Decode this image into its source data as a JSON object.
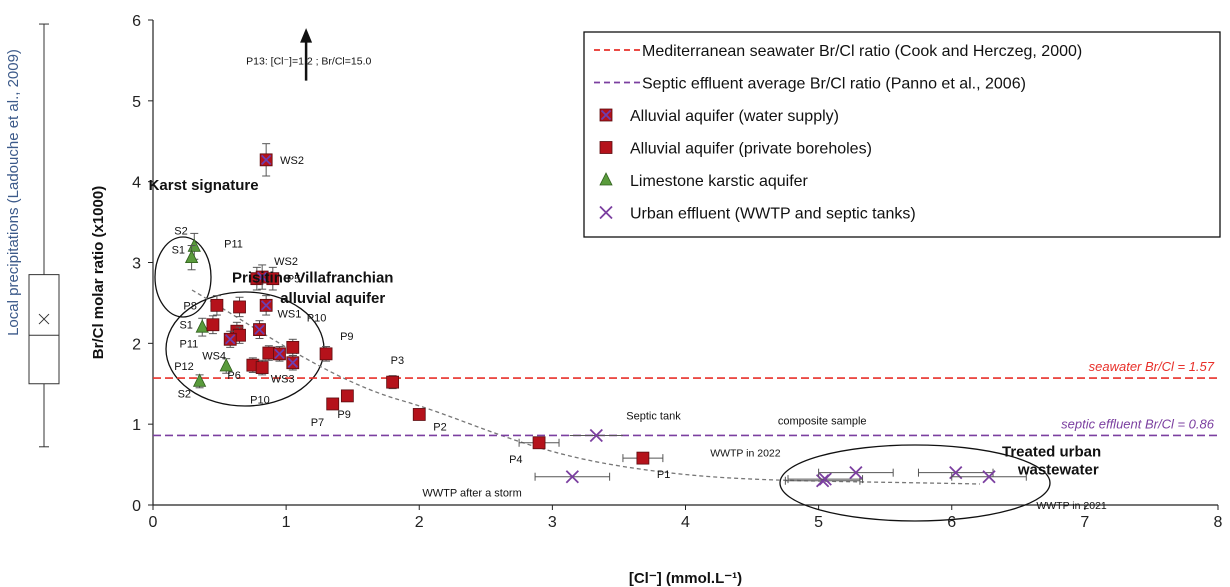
{
  "chart_data": {
    "type": "scatter",
    "title": "",
    "xlabel": "[Cl⁻] (mmol.L⁻¹)",
    "ylabel": "Br/Cl molar ratio (x1000)",
    "xlim": [
      0,
      8
    ],
    "ylim": [
      0,
      6
    ],
    "xticks": [
      0,
      1,
      2,
      3,
      4,
      5,
      6,
      7,
      8
    ],
    "yticks": [
      0,
      1,
      2,
      3,
      4,
      5,
      6
    ],
    "xtick_labels": [
      "0",
      "1",
      "2",
      "3",
      "4",
      "5",
      "6",
      "7",
      "8"
    ],
    "ytick_labels": [
      "0",
      "1",
      "2",
      "3",
      "4",
      "5",
      "6"
    ],
    "legend": {
      "placement": "top-right",
      "entries": [
        {
          "key": "seawater_line",
          "label": "Mediterranean seawater Br/Cl ratio (Cook and Herczeg, 2000)",
          "marker": "dashed-line",
          "color": "#e8302a"
        },
        {
          "key": "septic_line",
          "label": "Septic effluent average Br/Cl ratio (Panno et al., 2006)",
          "marker": "dashed-line",
          "color": "#7b3fa0"
        },
        {
          "key": "water_supply",
          "label": "Alluvial aquifer (water supply)",
          "marker": "square-x",
          "color": "#b5121b"
        },
        {
          "key": "private",
          "label": "Alluvial aquifer (private boreholes)",
          "marker": "square",
          "color": "#b5121b"
        },
        {
          "key": "karst",
          "label": "Limestone karstic aquifer",
          "marker": "triangle",
          "color": "#5a9b3c"
        },
        {
          "key": "urban",
          "label": "Urban effluent (WWTP and septic tanks)",
          "marker": "x",
          "color": "#7b3fa0"
        }
      ]
    },
    "reference_lines": [
      {
        "name": "seawater",
        "y": 1.57,
        "label": "seawater Br/Cl = 1.57",
        "color": "#e8302a"
      },
      {
        "name": "septic",
        "y": 0.86,
        "label": "septic effluent Br/Cl = 0.86",
        "color": "#7b3fa0"
      }
    ],
    "series": [
      {
        "key": "water_supply",
        "points": [
          {
            "label": "WS2",
            "x": 0.85,
            "y": 4.27,
            "yerr": 0.2
          },
          {
            "label": "WS2",
            "x": 0.82,
            "y": 2.82,
            "yerr": 0.15
          },
          {
            "label": "P11",
            "x": 0.85,
            "y": 2.47,
            "yerr": 0.12
          },
          {
            "label": "WS1",
            "x": 0.8,
            "y": 2.17,
            "yerr": 0.11
          },
          {
            "label": "WS4",
            "x": 0.58,
            "y": 2.05,
            "yerr": 0.1
          },
          {
            "label": "",
            "x": 0.95,
            "y": 1.87,
            "yerr": 0.09
          },
          {
            "label": "WS3",
            "x": 1.05,
            "y": 1.76,
            "yerr": 0.09
          }
        ]
      },
      {
        "key": "private",
        "points": [
          {
            "label": "",
            "x": 0.78,
            "y": 2.8,
            "yerr": 0.14
          },
          {
            "label": "P5",
            "x": 0.9,
            "y": 2.8,
            "yerr": 0.14
          },
          {
            "label": "P8",
            "x": 0.48,
            "y": 2.47,
            "yerr": 0.12
          },
          {
            "label": "",
            "x": 0.65,
            "y": 2.45,
            "yerr": 0.12
          },
          {
            "label": "S1",
            "x": 0.45,
            "y": 2.23,
            "yerr": 0.11
          },
          {
            "label": "",
            "x": 0.63,
            "y": 2.15,
            "yerr": 0.11
          },
          {
            "label": "P11",
            "x": 0.65,
            "y": 2.1,
            "yerr": 0.1
          },
          {
            "label": "P10",
            "x": 1.05,
            "y": 1.95,
            "yerr": 0.1
          },
          {
            "label": "",
            "x": 0.87,
            "y": 1.88,
            "yerr": 0.09
          },
          {
            "label": "P9",
            "x": 1.3,
            "y": 1.87,
            "yerr": 0.09
          },
          {
            "label": "P6",
            "x": 0.75,
            "y": 1.73,
            "yerr": 0.09
          },
          {
            "label": "P10",
            "x": 0.82,
            "y": 1.7,
            "yerr": 0.09
          },
          {
            "label": "P3",
            "x": 1.8,
            "y": 1.52,
            "yerr": 0.08
          },
          {
            "label": "P9",
            "x": 1.46,
            "y": 1.35,
            "yerr": 0.07
          },
          {
            "label": "P7",
            "x": 1.35,
            "y": 1.25,
            "yerr": 0.06
          },
          {
            "label": "P2",
            "x": 2.0,
            "y": 1.12,
            "yerr": 0.06
          },
          {
            "label": "P4",
            "x": 2.9,
            "y": 0.77,
            "yerr": 0.04
          },
          {
            "label": "P1",
            "x": 3.68,
            "y": 0.58,
            "yerr": 0.03
          }
        ]
      },
      {
        "key": "karst",
        "points": [
          {
            "label": "S2",
            "x": 0.31,
            "y": 3.2,
            "yerr": 0.16
          },
          {
            "label": "S1",
            "x": 0.29,
            "y": 3.06,
            "yerr": 0.15
          },
          {
            "label": "",
            "x": 0.37,
            "y": 2.2,
            "yerr": 0.11
          },
          {
            "label": "P12",
            "x": 0.55,
            "y": 1.72,
            "yerr": 0.09
          },
          {
            "label": "S2",
            "x": 0.35,
            "y": 1.53,
            "yerr": 0.08
          }
        ]
      },
      {
        "key": "urban",
        "points": [
          {
            "label": "Septic tank",
            "x": 3.33,
            "y": 0.86,
            "yerr": 0
          },
          {
            "label": "WWTP after a storm",
            "x": 3.15,
            "y": 0.35,
            "yerr": 0
          },
          {
            "label": "",
            "x": 5.03,
            "y": 0.3,
            "yerr": 0
          },
          {
            "label": "",
            "x": 5.05,
            "y": 0.32,
            "yerr": 0
          },
          {
            "label": "composite sample",
            "x": 5.28,
            "y": 0.4,
            "yerr": 0
          },
          {
            "label": "",
            "x": 6.03,
            "y": 0.4,
            "yerr": 0
          },
          {
            "label": "",
            "x": 6.28,
            "y": 0.35,
            "yerr": 0
          }
        ]
      }
    ],
    "annotations": [
      {
        "text": "Karst signature",
        "bold": true,
        "x": 0.38,
        "y": 3.9
      },
      {
        "text": "Prisitine Villafranchian",
        "bold": true,
        "x": 1.2,
        "y": 2.75
      },
      {
        "text": "alluvial aquifer",
        "bold": true,
        "x": 1.35,
        "y": 2.5
      },
      {
        "text": "Treated urban",
        "bold": true,
        "x": 6.75,
        "y": 0.6
      },
      {
        "text": "wastewater",
        "bold": true,
        "x": 6.8,
        "y": 0.38
      },
      {
        "text": "P13: [Cl⁻]=1.2 ; Br/Cl=15.0",
        "bold": false,
        "x": 1.17,
        "y": 5.45
      },
      {
        "text": "WWTP in 2022",
        "bold": false,
        "x": 4.45,
        "y": 0.6
      },
      {
        "text": "WWTP in 2021",
        "bold": false,
        "x": 6.9,
        "y": -0.05
      }
    ],
    "side_boxplot": {
      "label": "Local precipitations (Ladouche et al., 2009)",
      "whisker_low": 0.72,
      "q1": 1.5,
      "median": 2.1,
      "mean": 2.3,
      "q3": 2.85,
      "whisker_high": 5.95
    }
  }
}
